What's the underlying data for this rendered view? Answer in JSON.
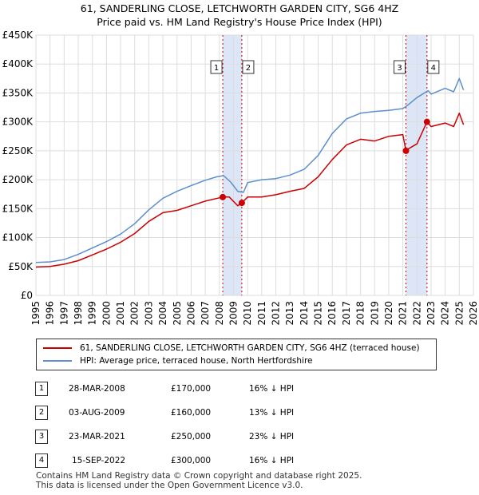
{
  "title_line1": "61, SANDERLING CLOSE, LETCHWORTH GARDEN CITY, SG6 4HZ",
  "title_line2": "Price paid vs. HM Land Registry's House Price Index (HPI)",
  "legend": {
    "property_label": "61, SANDERLING CLOSE, LETCHWORTH GARDEN CITY, SG6 4HZ (terraced house)",
    "hpi_label": "HPI: Average price, terraced house, North Hertfordshire"
  },
  "sales": [
    {
      "num": "1",
      "date": "28-MAR-2008",
      "price": "£170,000",
      "hpi": "16% ↓ HPI"
    },
    {
      "num": "2",
      "date": "03-AUG-2009",
      "price": "£160,000",
      "hpi": "13% ↓ HPI"
    },
    {
      "num": "3",
      "date": "23-MAR-2021",
      "price": "£250,000",
      "hpi": "23% ↓ HPI"
    },
    {
      "num": "4",
      "date": "15-SEP-2022",
      "price": "£300,000",
      "hpi": "16% ↓ HPI"
    }
  ],
  "footer_line1": "Contains HM Land Registry data © Crown copyright and database right 2025.",
  "footer_line2": "This data is licensed under the Open Government Licence v3.0.",
  "colors": {
    "property": "#cc0000",
    "hpi": "#5b8fd0",
    "band": "#dce6f7",
    "grid": "#dddddd"
  },
  "chart_data": {
    "type": "line",
    "xlim": [
      1995,
      2026
    ],
    "ylim": [
      0,
      450000
    ],
    "x_ticks": [
      1995,
      1996,
      1997,
      1998,
      1999,
      2000,
      2001,
      2002,
      2003,
      2004,
      2005,
      2006,
      2007,
      2008,
      2009,
      2010,
      2011,
      2012,
      2013,
      2014,
      2015,
      2016,
      2017,
      2018,
      2019,
      2020,
      2021,
      2022,
      2023,
      2024,
      2025,
      2026
    ],
    "x_tick_labels": [
      "1995",
      "1996",
      "1997",
      "1998",
      "1999",
      "2000",
      "2001",
      "2002",
      "2003",
      "2004",
      "2005",
      "2006",
      "2007",
      "2008",
      "2009",
      "2010",
      "2011",
      "2012",
      "2013",
      "2014",
      "2015",
      "2016",
      "2017",
      "2018",
      "2019",
      "2020",
      "2021",
      "2022",
      "2023",
      "2024",
      "2025",
      "2026"
    ],
    "y_ticks": [
      0,
      50000,
      100000,
      150000,
      200000,
      250000,
      300000,
      350000,
      400000,
      450000
    ],
    "y_tick_labels": [
      "£0",
      "£50K",
      "£100K",
      "£150K",
      "£200K",
      "£250K",
      "£300K",
      "£350K",
      "£400K",
      "£450K"
    ],
    "series": [
      {
        "name": "HPI: Average price, terraced house, North Hertfordshire",
        "x": [
          1995,
          1996,
          1997,
          1998,
          1999,
          2000,
          2001,
          2002,
          2003,
          2004,
          2005,
          2006,
          2007,
          2007.8,
          2008.3,
          2008.8,
          2009.3,
          2009.7,
          2010,
          2011,
          2012,
          2013,
          2014,
          2015,
          2016,
          2017,
          2018,
          2019,
          2020,
          2021,
          2021.3,
          2022,
          2022.8,
          2023,
          2024,
          2024.6,
          2025,
          2025.3
        ],
        "y": [
          57000,
          58000,
          62000,
          71000,
          82000,
          93000,
          106000,
          124000,
          148000,
          168000,
          180000,
          190000,
          199000,
          205000,
          207000,
          196000,
          180000,
          178000,
          195000,
          200000,
          202000,
          208000,
          218000,
          242000,
          280000,
          305000,
          315000,
          318000,
          320000,
          323000,
          328000,
          342000,
          354000,
          348000,
          358000,
          352000,
          375000,
          355000
        ]
      },
      {
        "name": "61, SANDERLING CLOSE, LETCHWORTH GARDEN CITY, SG6 4HZ (terraced house)",
        "x": [
          1995,
          1996,
          1997,
          1998,
          1999,
          2000,
          2001,
          2002,
          2003,
          2004,
          2005,
          2006,
          2007,
          2008.24,
          2008.7,
          2009.3,
          2009.59,
          2010,
          2011,
          2012,
          2013,
          2014,
          2015,
          2016,
          2017,
          2018,
          2019,
          2020,
          2021,
          2021.22,
          2021.3,
          2022,
          2022.71,
          2023,
          2024,
          2024.6,
          2025,
          2025.3
        ],
        "y": [
          49000,
          50000,
          54000,
          60000,
          70000,
          80000,
          92000,
          107000,
          128000,
          143000,
          147000,
          155000,
          163000,
          170000,
          170000,
          155000,
          160000,
          170000,
          170000,
          174000,
          180000,
          185000,
          205000,
          235000,
          260000,
          270000,
          267000,
          275000,
          278000,
          250000,
          252000,
          262000,
          300000,
          292000,
          298000,
          292000,
          315000,
          295000
        ]
      }
    ],
    "transactions": [
      {
        "label": "1",
        "x": 2008.24,
        "y": 170000
      },
      {
        "label": "2",
        "x": 2009.59,
        "y": 160000
      },
      {
        "label": "3",
        "x": 2021.22,
        "y": 250000
      },
      {
        "label": "4",
        "x": 2022.71,
        "y": 300000
      }
    ],
    "shaded_periods": [
      [
        2008.24,
        2009.59
      ],
      [
        2021.22,
        2022.71
      ]
    ]
  }
}
